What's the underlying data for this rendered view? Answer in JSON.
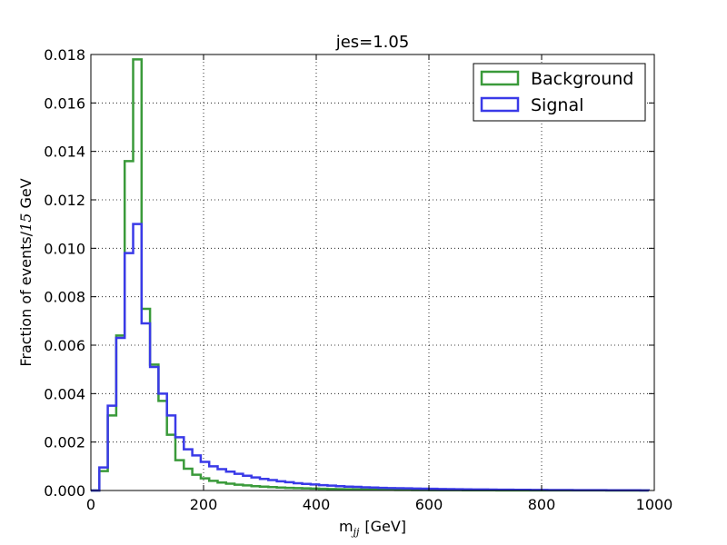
{
  "chart_data": {
    "type": "line",
    "title": "jes=1.05",
    "xlabel": "m",
    "xlabel_sub": "jj",
    "xlabel_unit": "[GeV]",
    "ylabel_prefix": "Fraction of events/",
    "ylabel_math": "15",
    "ylabel_suffix": "GeV",
    "xlim": [
      0,
      1000
    ],
    "ylim": [
      0,
      0.018
    ],
    "xticks": [
      0,
      200,
      400,
      600,
      800,
      1000
    ],
    "xtick_labels": [
      "0",
      "200",
      "400",
      "600",
      "800",
      "1000"
    ],
    "yticks": [
      0,
      0.002,
      0.004,
      0.006,
      0.008,
      0.01,
      0.012,
      0.014,
      0.016,
      0.018
    ],
    "ytick_labels": [
      "0.000",
      "0.002",
      "0.004",
      "0.006",
      "0.008",
      "0.010",
      "0.012",
      "0.014",
      "0.016",
      "0.018"
    ],
    "grid": true,
    "legend_position": "top-right",
    "bin_edges": [
      0,
      15,
      30,
      45,
      60,
      75,
      90,
      105,
      120,
      135,
      150,
      165,
      180,
      195,
      210,
      225,
      240,
      255,
      270,
      285,
      300,
      315,
      330,
      345,
      360,
      375,
      390,
      405,
      420,
      435,
      450,
      465,
      480,
      495,
      510,
      525,
      540,
      555,
      570,
      585,
      600,
      615,
      630,
      645,
      660,
      675,
      690,
      705,
      720,
      735,
      750,
      765,
      780,
      795,
      810,
      825,
      840,
      855,
      870,
      885,
      900,
      915,
      930,
      945,
      960,
      975,
      990
    ],
    "series": [
      {
        "name": "Background",
        "color": "#3a9a3a",
        "values": [
          0.0,
          0.0008,
          0.0031,
          0.0064,
          0.0136,
          0.0178,
          0.0075,
          0.0052,
          0.0037,
          0.0023,
          0.00125,
          0.0009,
          0.00065,
          0.0005,
          0.0004,
          0.00033,
          0.00028,
          0.00024,
          0.00021,
          0.00018,
          0.00016,
          0.00014,
          0.00012,
          0.00011,
          0.0001,
          9e-05,
          8e-05,
          7e-05,
          6e-05,
          5.5e-05,
          5e-05,
          4.5e-05,
          4e-05,
          3.5e-05,
          3e-05,
          2.8e-05,
          2.5e-05,
          2.2e-05,
          2e-05,
          1.8e-05,
          1.6e-05,
          1.5e-05,
          1.3e-05,
          1.2e-05,
          1.1e-05,
          1e-05,
          9e-06,
          8e-06,
          7e-06,
          7e-06,
          6e-06,
          6e-06,
          5e-06,
          5e-06,
          4e-06,
          4e-06,
          4e-06,
          3e-06,
          3e-06,
          3e-06,
          3e-06,
          2e-06,
          2e-06,
          2e-06,
          2e-06,
          2e-06
        ]
      },
      {
        "name": "Signal",
        "color": "#3a3ae8",
        "values": [
          0.0,
          0.00095,
          0.0035,
          0.0063,
          0.0098,
          0.011,
          0.0069,
          0.0051,
          0.004,
          0.0031,
          0.0022,
          0.0017,
          0.00145,
          0.00118,
          0.001,
          0.00088,
          0.00078,
          0.00069,
          0.00061,
          0.00054,
          0.00048,
          0.00043,
          0.00038,
          0.00034,
          0.0003,
          0.00027,
          0.00025,
          0.00022,
          0.0002,
          0.00018,
          0.00016,
          0.00015,
          0.00013,
          0.00012,
          0.00011,
          0.0001,
          9.5e-05,
          8.8e-05,
          8e-05,
          7.4e-05,
          6.8e-05,
          6.2e-05,
          5.7e-05,
          5.2e-05,
          4.8e-05,
          4.4e-05,
          4e-05,
          3.7e-05,
          3.4e-05,
          3.1e-05,
          2.8e-05,
          2.6e-05,
          2.4e-05,
          2.2e-05,
          2e-05,
          1.8e-05,
          1.7e-05,
          1.5e-05,
          1.4e-05,
          1.3e-05,
          1.2e-05,
          1.1e-05,
          1e-05,
          9e-06,
          8e-06,
          7e-06
        ]
      }
    ]
  }
}
